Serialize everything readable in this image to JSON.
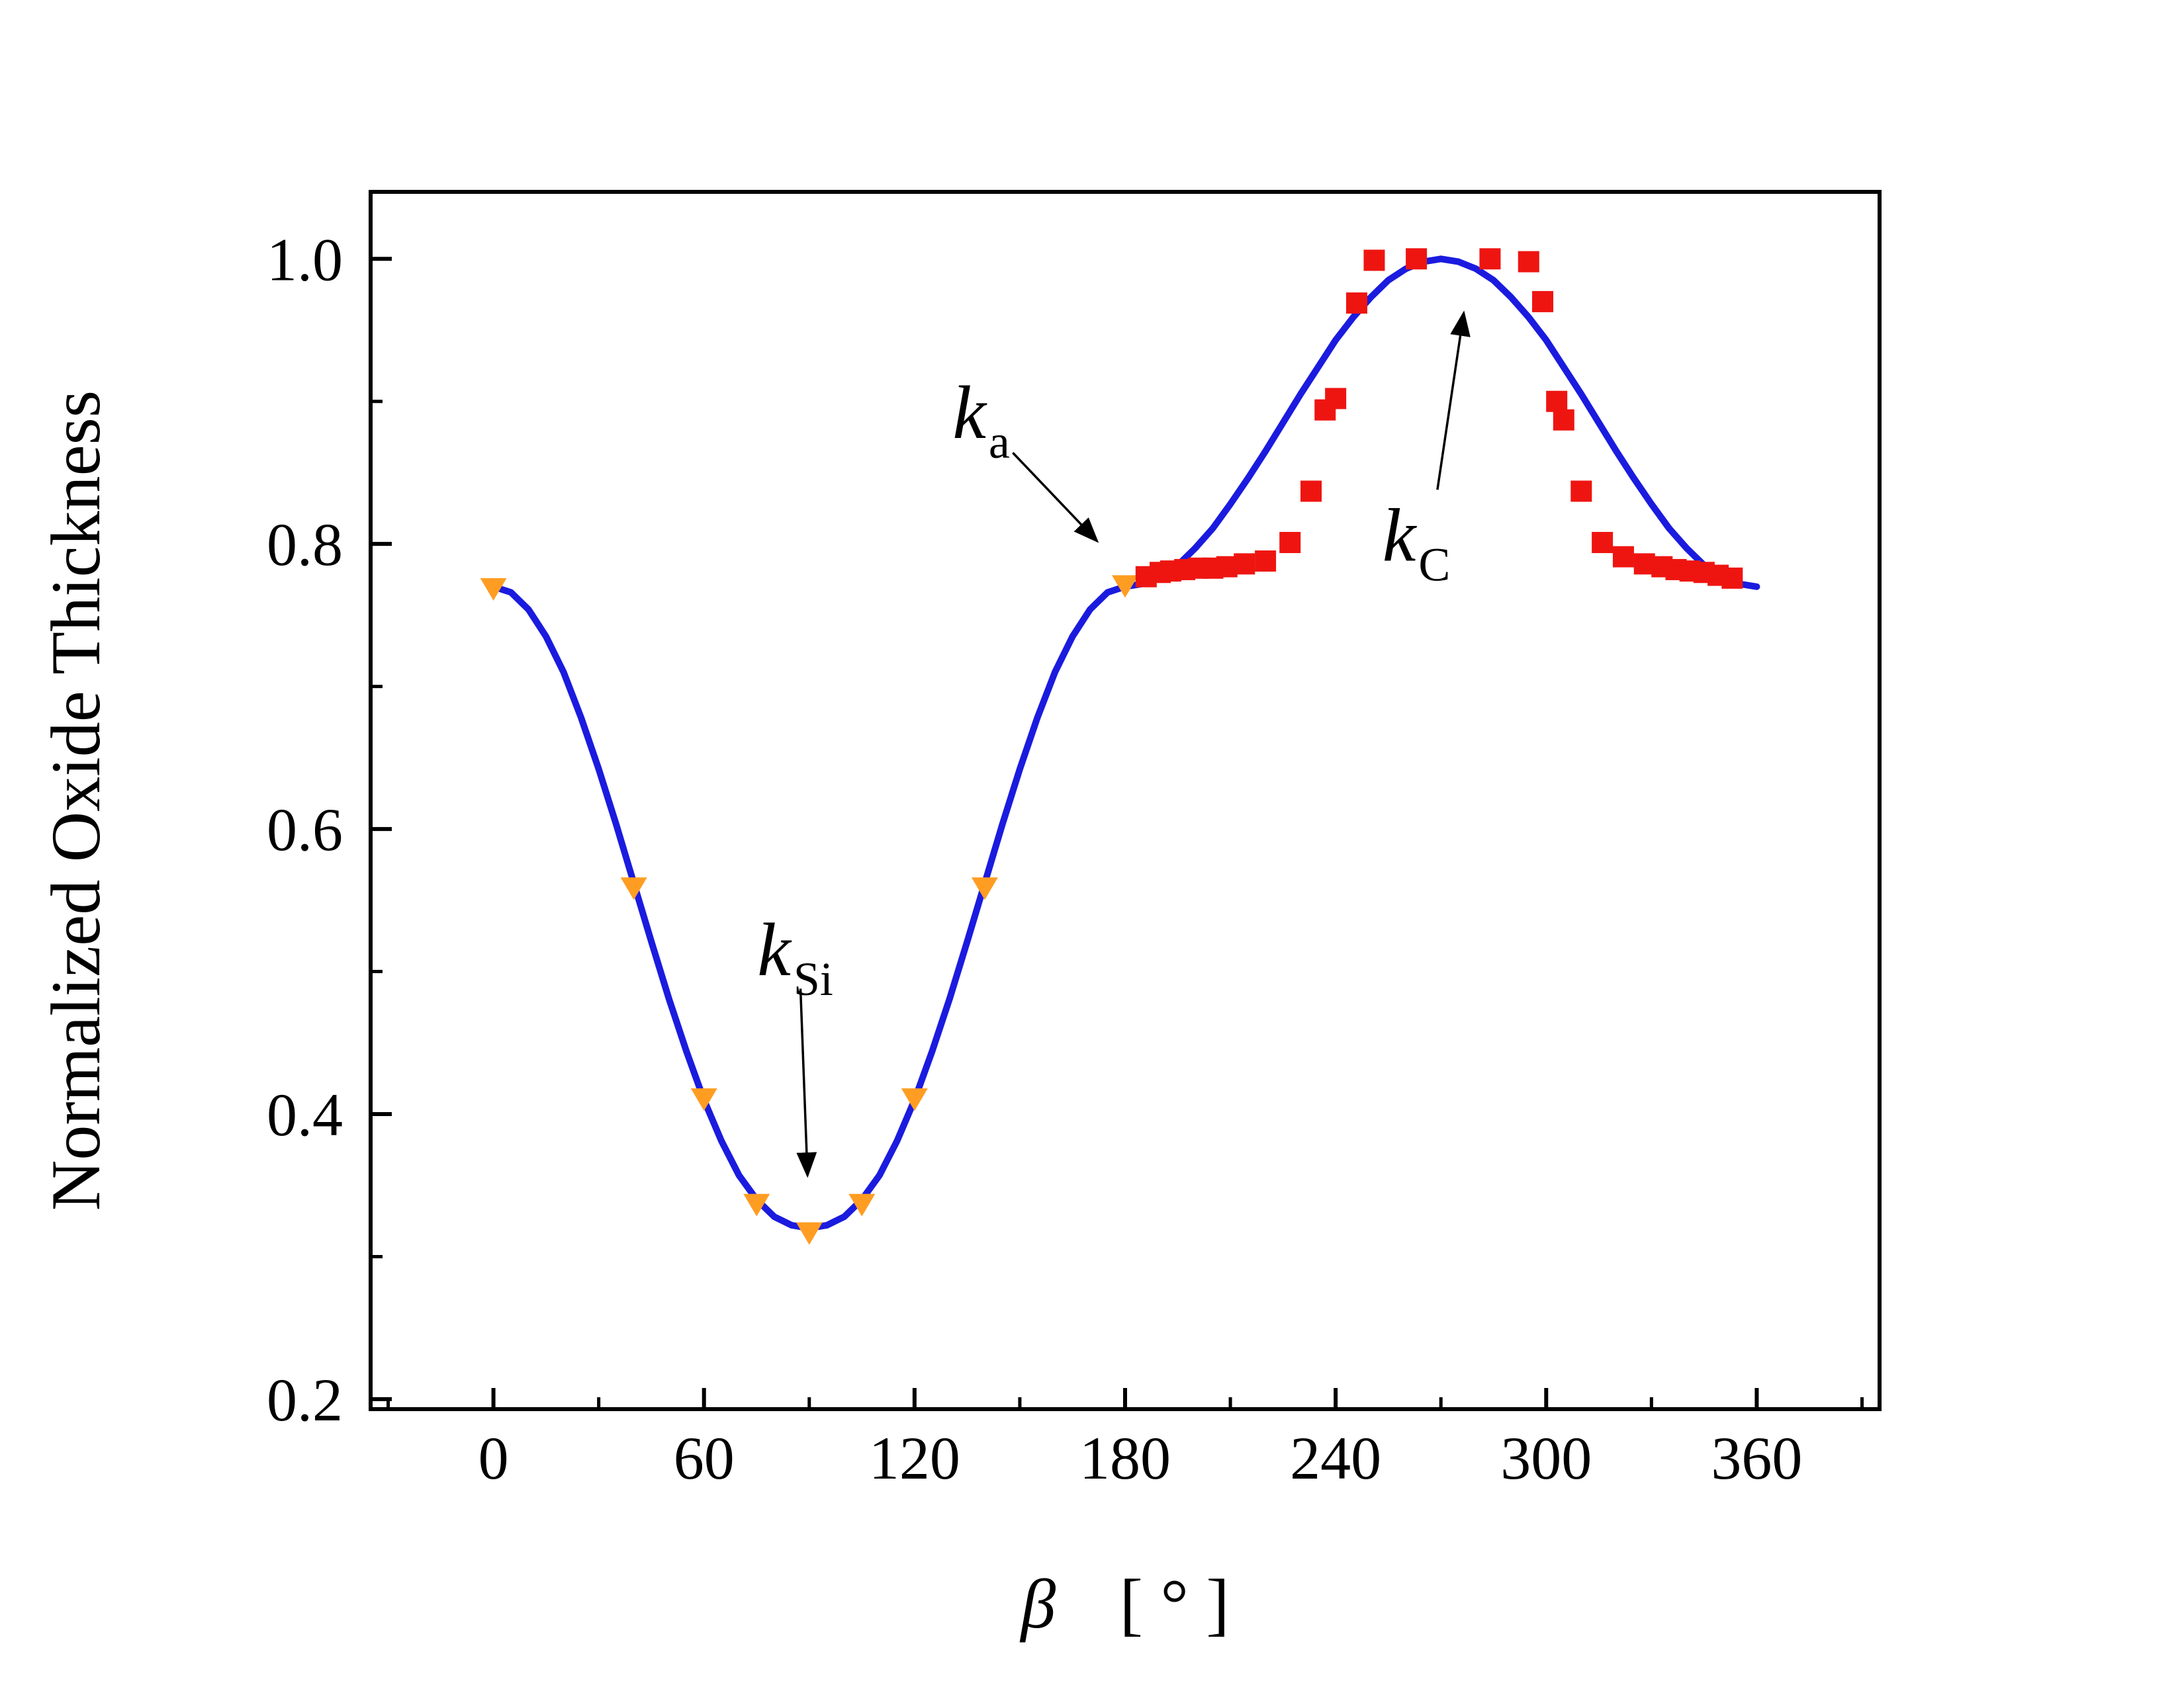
{
  "chart_data": {
    "type": "line",
    "title": "",
    "xlabel_symbol": "β",
    "xlabel_unit": "[ ° ]",
    "ylabel": "Normalized Oxide Thickness",
    "xlim": [
      -35,
      395
    ],
    "ylim": [
      0.193,
      1.047
    ],
    "x_ticks": [
      0,
      60,
      120,
      180,
      240,
      300,
      360
    ],
    "x_tick_labels": [
      "0",
      "60",
      "120",
      "180",
      "240",
      "300",
      "360"
    ],
    "x_minor_ticks": [
      -30,
      30,
      90,
      150,
      210,
      270,
      330,
      390
    ],
    "y_ticks": [
      0.2,
      0.4,
      0.6,
      0.8,
      1.0
    ],
    "y_tick_labels": [
      "0.2",
      "0.4",
      "0.6",
      "0.8",
      "1.0"
    ],
    "y_minor_ticks": [
      0.3,
      0.5,
      0.7,
      0.9
    ],
    "grid": false,
    "legend": "none",
    "colors": {
      "curve": "#1b1bdf",
      "triangle": "#ff9d23",
      "square": "#ee1511",
      "axis": "#000000"
    },
    "series": [
      {
        "name": "model-curve",
        "type": "line",
        "color_key": "curve",
        "x": [
          0,
          5,
          10,
          15,
          20,
          25,
          30,
          35,
          40,
          45,
          50,
          55,
          60,
          65,
          70,
          75,
          80,
          85,
          90,
          95,
          100,
          105,
          110,
          115,
          120,
          125,
          130,
          135,
          140,
          145,
          150,
          155,
          160,
          165,
          170,
          175,
          180,
          185,
          190,
          195,
          200,
          205,
          210,
          215,
          220,
          225,
          230,
          235,
          240,
          245,
          250,
          255,
          260,
          265,
          270,
          275,
          280,
          285,
          290,
          295,
          300,
          305,
          310,
          315,
          320,
          325,
          330,
          335,
          340,
          345,
          350,
          355,
          360
        ],
        "y": [
          0.77,
          0.766,
          0.754,
          0.735,
          0.71,
          0.678,
          0.642,
          0.603,
          0.562,
          0.521,
          0.481,
          0.444,
          0.41,
          0.381,
          0.357,
          0.34,
          0.328,
          0.322,
          0.32,
          0.322,
          0.328,
          0.34,
          0.357,
          0.381,
          0.41,
          0.444,
          0.481,
          0.521,
          0.562,
          0.603,
          0.642,
          0.678,
          0.71,
          0.735,
          0.754,
          0.766,
          0.77,
          0.772,
          0.777,
          0.785,
          0.797,
          0.811,
          0.828,
          0.846,
          0.865,
          0.885,
          0.905,
          0.924,
          0.943,
          0.959,
          0.973,
          0.985,
          0.993,
          0.998,
          1.0,
          0.998,
          0.993,
          0.985,
          0.973,
          0.959,
          0.943,
          0.924,
          0.905,
          0.885,
          0.865,
          0.846,
          0.828,
          0.811,
          0.797,
          0.785,
          0.777,
          0.772,
          0.77
        ]
      },
      {
        "name": "triangle-data",
        "type": "scatter",
        "marker": "triangle-down",
        "color_key": "triangle",
        "points": [
          [
            0,
            0.77
          ],
          [
            40,
            0.56
          ],
          [
            60,
            0.412
          ],
          [
            75,
            0.338
          ],
          [
            90,
            0.318
          ],
          [
            105,
            0.338
          ],
          [
            120,
            0.412
          ],
          [
            140,
            0.56
          ],
          [
            180,
            0.772
          ]
        ]
      },
      {
        "name": "square-data",
        "type": "scatter",
        "marker": "square",
        "color_key": "square",
        "points": [
          [
            186,
            0.777
          ],
          [
            190,
            0.78
          ],
          [
            193,
            0.781
          ],
          [
            197,
            0.782
          ],
          [
            201,
            0.783
          ],
          [
            205,
            0.783
          ],
          [
            209,
            0.784
          ],
          [
            214,
            0.786
          ],
          [
            220,
            0.788
          ],
          [
            227,
            0.801
          ],
          [
            233,
            0.837
          ],
          [
            237,
            0.894
          ],
          [
            240,
            0.902
          ],
          [
            246,
            0.969
          ],
          [
            251,
            0.999
          ],
          [
            263,
            1.0
          ],
          [
            284,
            1.0
          ],
          [
            295,
            0.998
          ],
          [
            299,
            0.97
          ],
          [
            303,
            0.9
          ],
          [
            305,
            0.887
          ],
          [
            310,
            0.837
          ],
          [
            316,
            0.801
          ],
          [
            322,
            0.791
          ],
          [
            328,
            0.786
          ],
          [
            333,
            0.784
          ],
          [
            337,
            0.782
          ],
          [
            341,
            0.781
          ],
          [
            345,
            0.78
          ],
          [
            349,
            0.778
          ],
          [
            353,
            0.776
          ]
        ]
      }
    ],
    "annotations": [
      {
        "id": "k-si",
        "main": "k",
        "sub": "Si",
        "label": [
          86,
          0.515
        ],
        "arrow_from": [
          87.5,
          0.488
        ],
        "arrow_to": [
          89.5,
          0.357
        ]
      },
      {
        "id": "k-a",
        "main": "k",
        "sub": "a",
        "label": [
          139,
          0.892
        ],
        "arrow_from": [
          148,
          0.864
        ],
        "arrow_to": [
          172,
          0.802
        ]
      },
      {
        "id": "k-c",
        "main": "k",
        "sub": "C",
        "label": [
          263,
          0.806
        ],
        "arrow_from": [
          269,
          0.838
        ],
        "arrow_to": [
          276.5,
          0.962
        ]
      }
    ]
  }
}
